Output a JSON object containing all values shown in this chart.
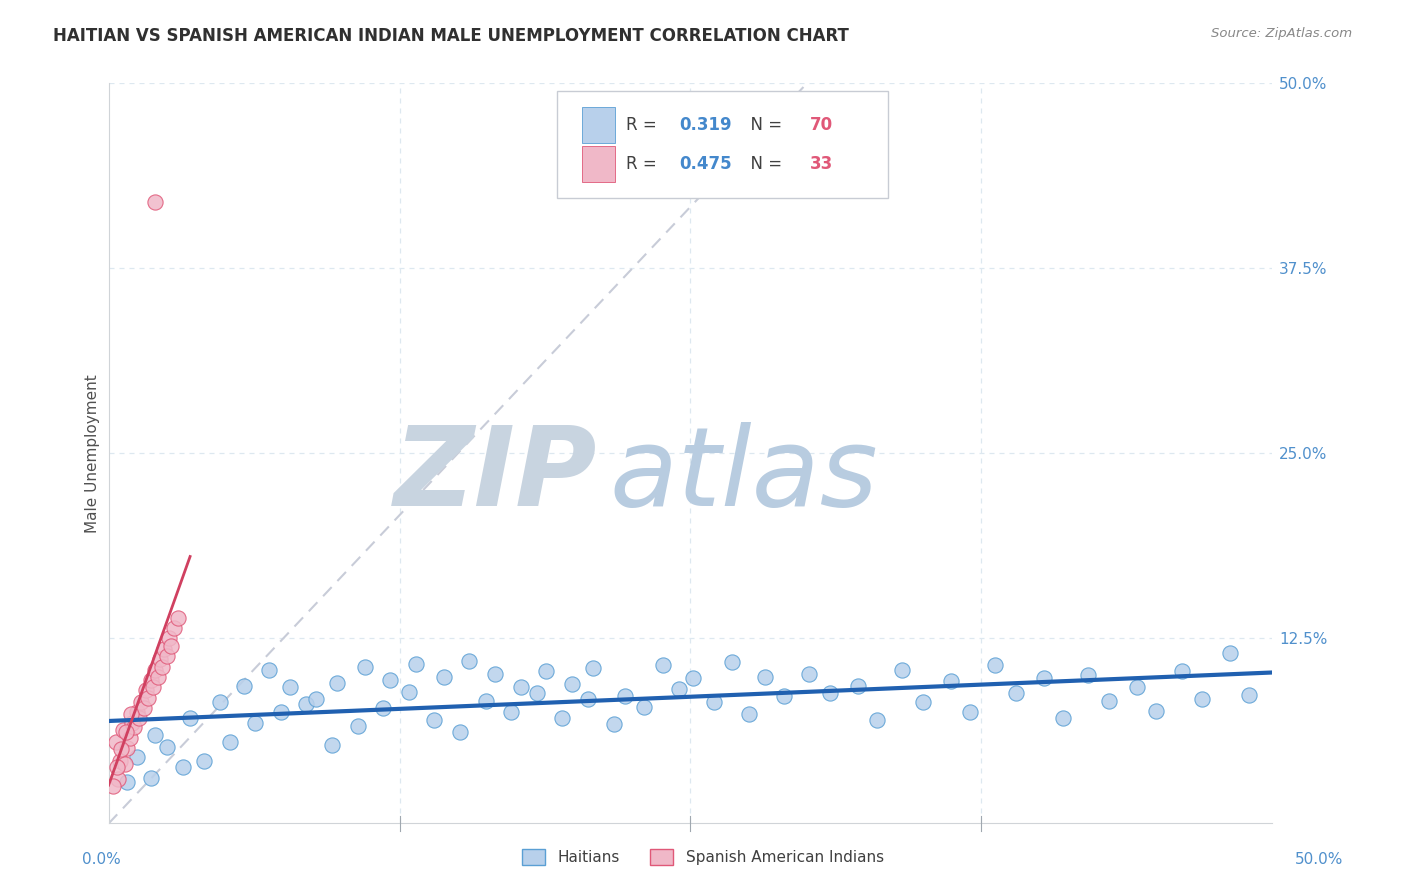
{
  "title": "HAITIAN VS SPANISH AMERICAN INDIAN MALE UNEMPLOYMENT CORRELATION CHART",
  "source_text": "Source: ZipAtlas.com",
  "ylabel": "Male Unemployment",
  "xlim": [
    0.0,
    50.0
  ],
  "ylim": [
    0.0,
    50.0
  ],
  "ytick_values": [
    0.0,
    12.5,
    25.0,
    37.5,
    50.0
  ],
  "ytick_labels": [
    "",
    "12.5%",
    "25.0%",
    "37.5%",
    "50.0%"
  ],
  "legend_entries": [
    {
      "label": "Haitians",
      "fill_color": "#b8d0eb",
      "edge_color": "#5a9fd4",
      "R": "0.319",
      "N": "70"
    },
    {
      "label": "Spanish American Indians",
      "fill_color": "#f0b8c8",
      "edge_color": "#e05878",
      "R": "0.475",
      "N": "33"
    }
  ],
  "blue_line_color": "#2060b0",
  "pink_line_color": "#d04060",
  "diagonal_color": "#c8ccd8",
  "watermark_zip_color": "#c8d4e4",
  "watermark_atlas_color": "#b8c8dc",
  "background_color": "#ffffff",
  "grid_color": "#dde8f0",
  "right_axis_color": "#5090cc",
  "title_color": "#303030",
  "legend_box_color": "#c8ccd4",
  "legend_text_color": "#4488cc",
  "blue_scatter_x": [
    1.2,
    0.8,
    2.5,
    1.8,
    3.2,
    2.0,
    4.1,
    3.5,
    5.2,
    4.8,
    6.3,
    5.8,
    7.4,
    6.9,
    8.5,
    7.8,
    9.6,
    8.9,
    10.7,
    9.8,
    11.8,
    11.0,
    12.9,
    12.1,
    14.0,
    13.2,
    15.1,
    14.4,
    16.2,
    15.5,
    17.3,
    16.6,
    18.4,
    17.7,
    19.5,
    18.8,
    20.6,
    19.9,
    21.7,
    20.8,
    23.0,
    22.2,
    24.5,
    23.8,
    26.0,
    25.1,
    27.5,
    26.8,
    29.0,
    28.2,
    31.0,
    30.1,
    33.0,
    32.2,
    35.0,
    34.1,
    37.0,
    36.2,
    39.0,
    38.1,
    41.0,
    40.2,
    43.0,
    42.1,
    45.0,
    44.2,
    47.0,
    46.1,
    49.0,
    48.2
  ],
  "blue_scatter_y": [
    4.5,
    2.8,
    5.2,
    3.1,
    3.8,
    6.0,
    4.2,
    7.1,
    5.5,
    8.2,
    6.8,
    9.3,
    7.5,
    10.4,
    8.1,
    9.2,
    5.3,
    8.4,
    6.6,
    9.5,
    7.8,
    10.6,
    8.9,
    9.7,
    7.0,
    10.8,
    6.2,
    9.9,
    8.3,
    11.0,
    7.5,
    10.1,
    8.8,
    9.2,
    7.1,
    10.3,
    8.4,
    9.4,
    6.7,
    10.5,
    7.9,
    8.6,
    9.1,
    10.7,
    8.2,
    9.8,
    7.4,
    10.9,
    8.6,
    9.9,
    8.8,
    10.1,
    7.0,
    9.3,
    8.2,
    10.4,
    7.5,
    9.6,
    8.8,
    10.7,
    7.1,
    9.8,
    8.3,
    10.0,
    7.6,
    9.2,
    8.4,
    10.3,
    8.7,
    11.5
  ],
  "pink_scatter_x": [
    0.3,
    0.5,
    0.4,
    0.6,
    0.8,
    0.7,
    1.0,
    0.9,
    1.2,
    1.1,
    1.4,
    1.3,
    1.6,
    1.5,
    1.8,
    1.7,
    2.0,
    1.9,
    2.2,
    2.1,
    2.4,
    2.3,
    2.6,
    2.5,
    2.8,
    2.7,
    3.0,
    0.2,
    0.35,
    0.55,
    0.75,
    0.95,
    2.0
  ],
  "pink_scatter_y": [
    5.5,
    4.2,
    3.0,
    6.3,
    5.1,
    4.0,
    6.8,
    5.8,
    7.5,
    6.5,
    8.2,
    7.1,
    9.0,
    7.8,
    9.7,
    8.5,
    10.4,
    9.2,
    11.1,
    9.9,
    11.8,
    10.6,
    12.5,
    11.3,
    13.2,
    12.0,
    13.9,
    2.5,
    3.8,
    5.0,
    6.2,
    7.4,
    42.0
  ]
}
